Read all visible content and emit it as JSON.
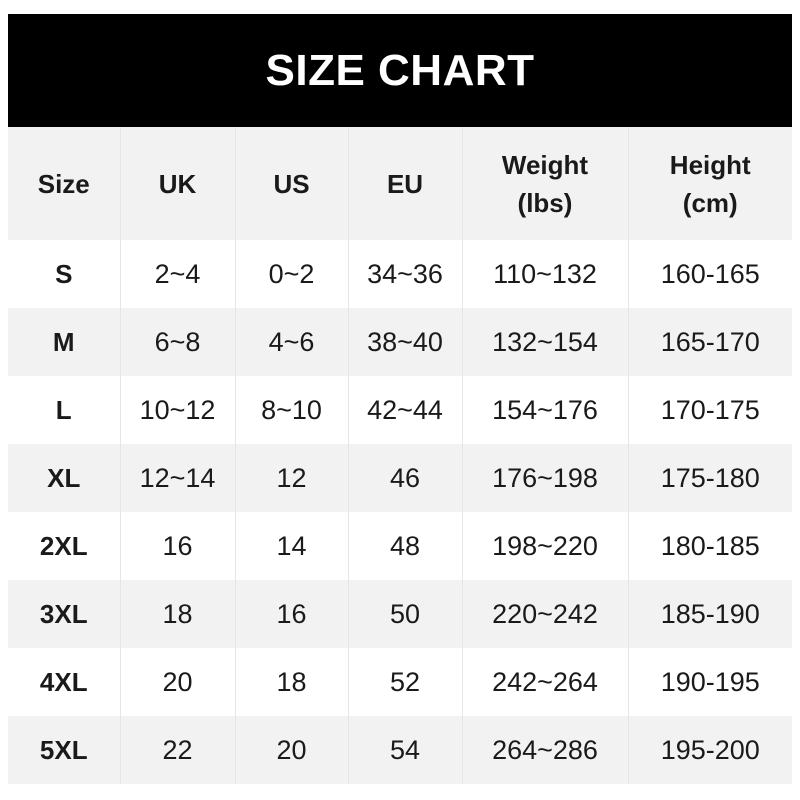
{
  "title": "SIZE CHART",
  "headers": [
    [
      "Size",
      ""
    ],
    [
      "UK",
      ""
    ],
    [
      "US",
      ""
    ],
    [
      "EU",
      ""
    ],
    [
      "Weight",
      "(lbs)"
    ],
    [
      "Height",
      "(cm)"
    ]
  ],
  "rows": [
    [
      "S",
      "2~4",
      "0~2",
      "34~36",
      "110~132",
      "160-165"
    ],
    [
      "M",
      "6~8",
      "4~6",
      "38~40",
      "132~154",
      "165-170"
    ],
    [
      "L",
      "10~12",
      "8~10",
      "42~44",
      "154~176",
      "170-175"
    ],
    [
      "XL",
      "12~14",
      "12",
      "46",
      "176~198",
      "175-180"
    ],
    [
      "2XL",
      "16",
      "14",
      "48",
      "198~220",
      "180-185"
    ],
    [
      "3XL",
      "18",
      "16",
      "50",
      "220~242",
      "185-190"
    ],
    [
      "4XL",
      "20",
      "18",
      "52",
      "242~264",
      "190-195"
    ],
    [
      "5XL",
      "22",
      "20",
      "54",
      "264~286",
      "195-200"
    ]
  ],
  "colors": {
    "title_bg": "#000000",
    "header_bg": "#f2f2f2",
    "stripe_bg": "#f2f2f2"
  }
}
